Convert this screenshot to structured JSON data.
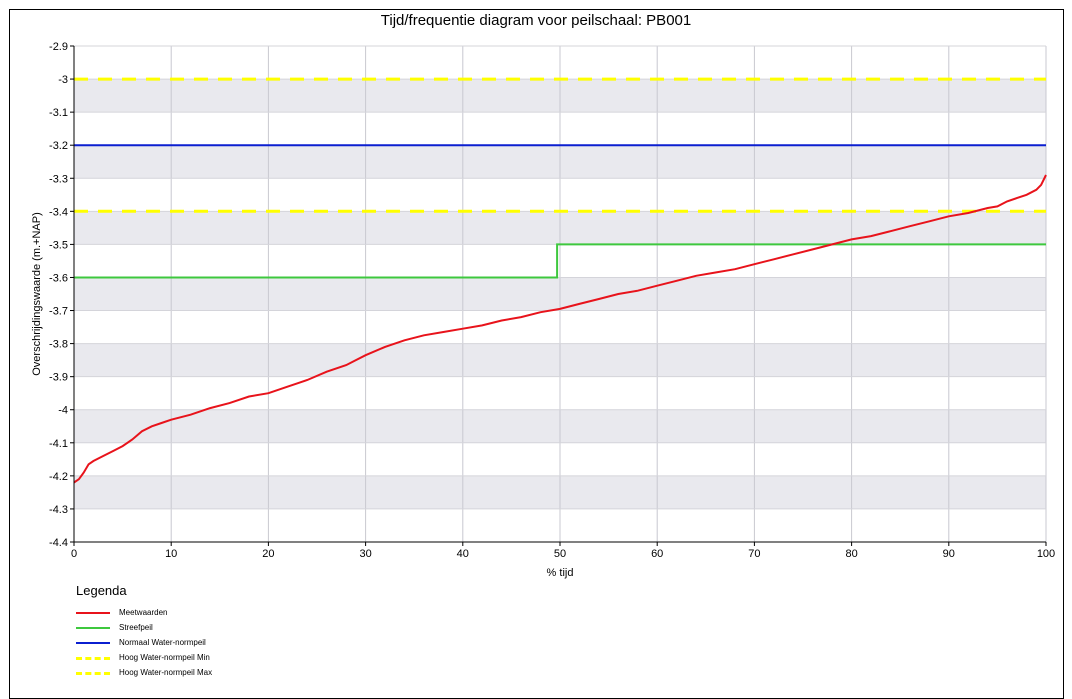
{
  "chart_data": {
    "type": "line",
    "title": "Tijd/frequentie diagram voor peilschaal: PB001",
    "xlabel": "% tijd",
    "ylabel": "Overschrijdingswaarde (m.+NAP)",
    "xlim": [
      0,
      100
    ],
    "ylim": [
      -4.4,
      -2.9
    ],
    "x_ticks": [
      "0",
      "10",
      "20",
      "30",
      "40",
      "50",
      "60",
      "70",
      "80",
      "90",
      "100"
    ],
    "y_ticks": [
      "-2.9",
      "-3",
      "-3.1",
      "-3.2",
      "-3.3",
      "-3.4",
      "-3.5",
      "-3.6",
      "-3.7",
      "-3.8",
      "-3.9",
      "-4",
      "-4.1",
      "-4.2",
      "-4.3",
      "-4.4"
    ],
    "grid": "horizontal alternating bands",
    "legend_title": "Legenda",
    "legend_position": "bottom-left",
    "series": [
      {
        "name": "Meetwaarden",
        "color": "#e8131b",
        "style": "solid",
        "x": [
          0,
          0.5,
          1,
          1.5,
          2,
          3,
          4,
          5,
          6,
          7,
          8,
          9,
          10,
          12,
          14,
          16,
          18,
          20,
          22,
          24,
          26,
          28,
          29,
          30,
          32,
          34,
          36,
          38,
          40,
          42,
          44,
          46,
          48,
          50,
          52,
          54,
          56,
          58,
          60,
          62,
          64,
          66,
          68,
          70,
          72,
          74,
          76,
          78,
          80,
          82,
          84,
          86,
          88,
          90,
          92,
          94,
          95,
          96,
          97,
          98,
          99,
          99.5,
          100
        ],
        "y": [
          -4.22,
          -4.21,
          -4.19,
          -4.165,
          -4.155,
          -4.14,
          -4.125,
          -4.11,
          -4.09,
          -4.065,
          -4.05,
          -4.04,
          -4.03,
          -4.015,
          -3.995,
          -3.98,
          -3.96,
          -3.95,
          -3.93,
          -3.91,
          -3.885,
          -3.865,
          -3.85,
          -3.835,
          -3.81,
          -3.79,
          -3.775,
          -3.765,
          -3.755,
          -3.745,
          -3.73,
          -3.72,
          -3.705,
          -3.695,
          -3.68,
          -3.665,
          -3.65,
          -3.64,
          -3.625,
          -3.61,
          -3.595,
          -3.585,
          -3.575,
          -3.56,
          -3.545,
          -3.53,
          -3.515,
          -3.5,
          -3.485,
          -3.475,
          -3.46,
          -3.445,
          -3.43,
          -3.415,
          -3.405,
          -3.39,
          -3.385,
          -3.37,
          -3.36,
          -3.35,
          -3.335,
          -3.32,
          -3.29
        ]
      },
      {
        "name": "Streefpeil",
        "color": "#3ec83e",
        "style": "solid",
        "x": [
          0,
          49.7,
          49.7,
          100
        ],
        "y": [
          -3.6,
          -3.6,
          -3.5,
          -3.5
        ]
      },
      {
        "name": "Normaal Water-normpeil",
        "color": "#0b1fd0",
        "style": "solid",
        "x": [
          0,
          100
        ],
        "y": [
          -3.2,
          -3.2
        ]
      },
      {
        "name": "Hoog Water-normpeil Min",
        "color": "#ffff00",
        "style": "dashed",
        "x": [
          0,
          100
        ],
        "y": [
          -3.4,
          -3.4
        ]
      },
      {
        "name": "Hoog Water-normpeil Max",
        "color": "#ffff00",
        "style": "dashed",
        "x": [
          0,
          100
        ],
        "y": [
          -3.0,
          -3.0
        ]
      }
    ]
  }
}
